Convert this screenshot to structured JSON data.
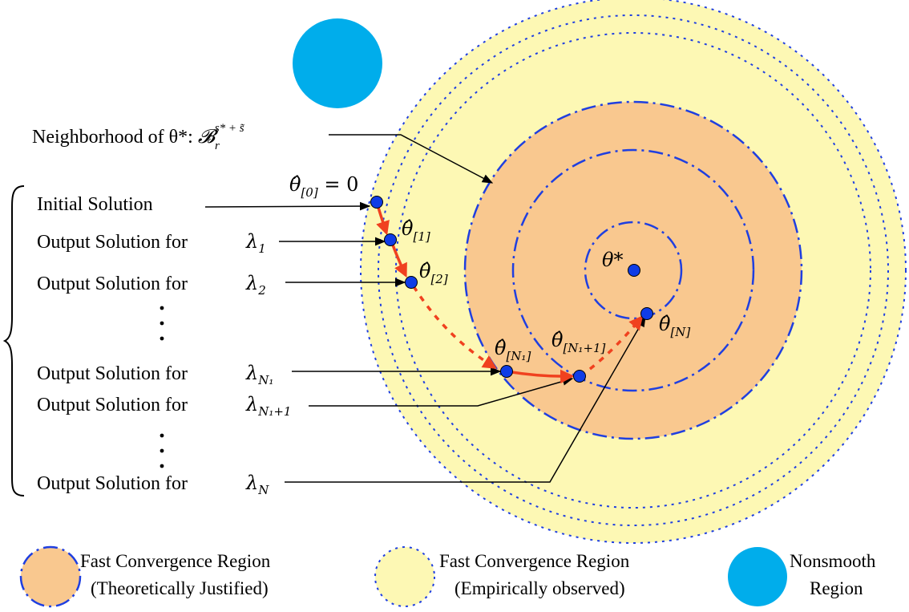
{
  "neighborhood": {
    "label": "Neighborhood of θ*: ",
    "symbol": "𝓑",
    "sub": "r",
    "sup": "s* + s̃"
  },
  "rows": [
    {
      "label": "Initial Solution",
      "lambda": "",
      "lambda_sub": ""
    },
    {
      "label": "Output Solution for",
      "lambda": "λ",
      "lambda_sub": "1"
    },
    {
      "label": "Output Solution for",
      "lambda": "λ",
      "lambda_sub": "2"
    },
    {
      "label": "Output Solution for",
      "lambda": "λ",
      "lambda_sub": "N₁"
    },
    {
      "label": "Output Solution for",
      "lambda": "λ",
      "lambda_sub": "N₁+1"
    },
    {
      "label": "Output Solution for",
      "lambda": "λ",
      "lambda_sub": "N"
    }
  ],
  "points": {
    "p0": {
      "main": "θ̂",
      "sub": "[0]",
      "suffix": " = 0"
    },
    "p1": {
      "main": "θ̂",
      "sub": "[1]"
    },
    "p2": {
      "main": "θ̂",
      "sub": "[2]"
    },
    "pN1": {
      "main": "θ̂",
      "sub": "[N₁]"
    },
    "pN1p1": {
      "main": "θ̂",
      "sub": "[N₁+1]"
    },
    "pN": {
      "main": "θ̂",
      "sub": "[N]"
    },
    "star": {
      "main": "θ*"
    }
  },
  "legend": {
    "theoretical": {
      "line1": "Fast Convergence Region",
      "line2": "(Theoretically Justified)"
    },
    "empirical": {
      "line1": "Fast Convergence Region",
      "line2": "(Empirically observed)"
    },
    "nonsmooth": {
      "line1": "Nonsmooth",
      "line2": "Region"
    }
  },
  "colors": {
    "yellow": "#fdf8b4",
    "orange": "#f9c88f",
    "blue_line": "#1f3fe0",
    "point": "#0f3ce6",
    "arrow_red": "#f0411f",
    "nonsmooth": "#00adeb"
  }
}
